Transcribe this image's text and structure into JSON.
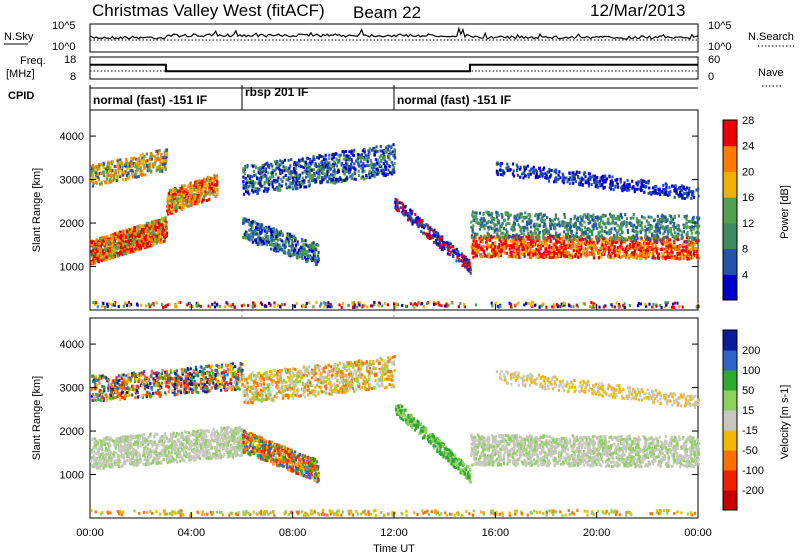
{
  "header": {
    "title": "Christmas Valley West (fitACF)",
    "beam": "Beam 22",
    "date": "12/Mar/2013"
  },
  "panels": {
    "nsky_label": "N.Sky",
    "nsearch_label": "N.Search",
    "freq_label": "Freq.",
    "freq_unit": "[MHz]",
    "nave_label": "Nave",
    "cpid_label": "CPID",
    "nsky_ticks": [
      "10^5",
      "10^0"
    ],
    "nsearch_ticks": [
      "10^5",
      "10^0"
    ],
    "freq_ticks": [
      "18",
      "8"
    ],
    "nave_ticks": [
      "60",
      "0"
    ]
  },
  "cpid_modes": [
    {
      "label": "normal (fast) -151 IF",
      "start": 0,
      "end": 6
    },
    {
      "label": "rbsp 201 IF",
      "start": 6,
      "end": 12
    },
    {
      "label": "normal (fast) -151 IF",
      "start": 12,
      "end": 24
    }
  ],
  "chart_data": [
    {
      "type": "line",
      "name": "Freq.",
      "x": [
        0,
        3.0,
        3.0,
        15.0,
        15.0,
        24
      ],
      "values": [
        14.5,
        14.5,
        11.5,
        11.5,
        14.5,
        14.5
      ],
      "ylabel": "Freq. [MHz]",
      "ylim": [
        8,
        18
      ]
    },
    {
      "type": "heatmap",
      "ylabel": "Slant Range [km]",
      "xlabel": "Time UT",
      "yticks": [
        "1000",
        "2000",
        "3000",
        "4000"
      ],
      "colorbar_label": "Power [dB]",
      "colorbar_ticks": [
        "4",
        "8",
        "12",
        "16",
        "20",
        "24",
        "28"
      ],
      "colors": [
        "#0000cc",
        "#2255aa",
        "#3e8a62",
        "#52a052",
        "#f0b000",
        "#ff7a00",
        "#ee0000"
      ]
    },
    {
      "type": "heatmap",
      "ylabel": "Slant Range [km]",
      "xlabel": "Time UT",
      "yticks": [
        "1000",
        "2000",
        "3000",
        "4000"
      ],
      "colorbar_label": "Velocity [m s-1]",
      "colorbar_ticks": [
        "200",
        "100",
        "50",
        "15",
        "-15",
        "-50",
        "-100",
        "-200"
      ],
      "colors": [
        "#0a1e9a",
        "#2c64c8",
        "#2fa82f",
        "#8fd060",
        "#c8c8c0",
        "#f2b800",
        "#ff7000",
        "#f02000",
        "#c80000"
      ]
    }
  ],
  "xaxis": {
    "ticks": [
      "00:00",
      "04:00",
      "08:00",
      "12:00",
      "16:00",
      "20:00",
      "00:00"
    ],
    "label": "Time UT"
  }
}
